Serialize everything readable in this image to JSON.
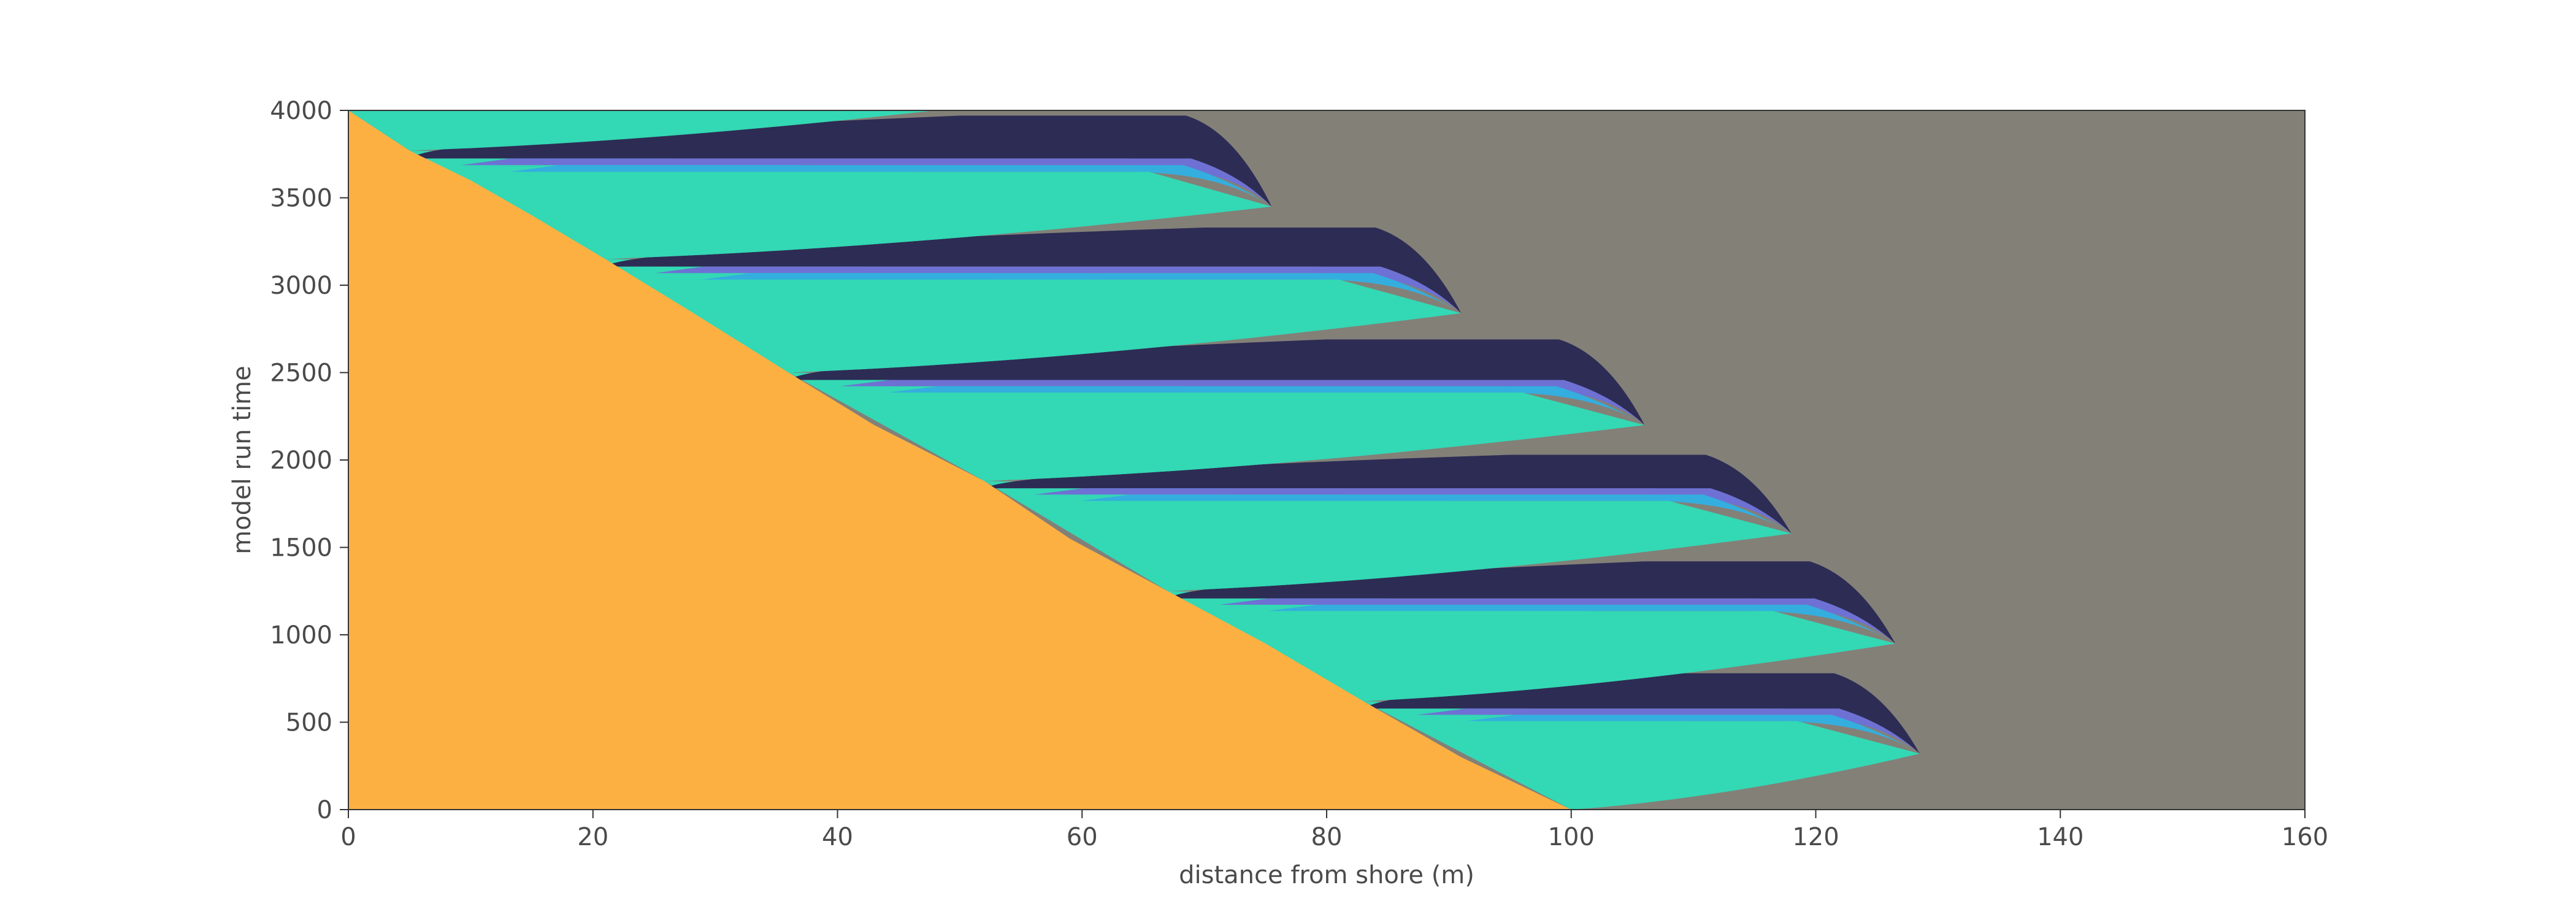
{
  "chart_data": {
    "type": "area",
    "title": "",
    "xlabel": "distance from shore (m)",
    "ylabel": "model run time",
    "xlim": [
      0,
      160
    ],
    "ylim": [
      0,
      4000
    ],
    "x_ticks": [
      0,
      20,
      40,
      60,
      80,
      100,
      120,
      140,
      160
    ],
    "y_ticks": [
      0,
      500,
      1000,
      1500,
      2000,
      2500,
      3000,
      3500,
      4000
    ],
    "grid": false,
    "legend": "none",
    "colors": {
      "background": "#838078",
      "shore": "#FDB042",
      "layer_teal": "#33D8B4",
      "layer_blue": "#34AEDE",
      "layer_purple": "#6E71D3",
      "layer_dark": "#2D2C54"
    },
    "shoreline": [
      {
        "t": 4000,
        "x": 0
      },
      {
        "t": 3770,
        "x": 5
      },
      {
        "t": 3600,
        "x": 10
      },
      {
        "t": 3400,
        "x": 15
      },
      {
        "t": 3150,
        "x": 21
      },
      {
        "t": 2850,
        "x": 28
      },
      {
        "t": 2500,
        "x": 36
      },
      {
        "t": 2200,
        "x": 43
      },
      {
        "t": 1880,
        "x": 52
      },
      {
        "t": 1550,
        "x": 59
      },
      {
        "t": 1250,
        "x": 67
      },
      {
        "t": 950,
        "x": 75
      },
      {
        "t": 620,
        "x": 83
      },
      {
        "t": 300,
        "x": 91
      },
      {
        "t": 0,
        "x": 100
      }
    ],
    "deposits": [
      {
        "start_t": 620,
        "end_t": 0,
        "start_x": 83,
        "end_x": 100,
        "tip_x": 128.5,
        "tip_t": 320,
        "dark_reach_x": 107,
        "top_t": 780
      },
      {
        "start_t": 1250,
        "end_t": 620,
        "start_x": 67,
        "end_x": 83,
        "tip_x": 126.5,
        "tip_t": 950,
        "dark_reach_x": 106,
        "top_t": 1420
      },
      {
        "start_t": 1880,
        "end_t": 1250,
        "start_x": 52,
        "end_x": 67,
        "tip_x": 118,
        "tip_t": 1580,
        "dark_reach_x": 95,
        "top_t": 2030
      },
      {
        "start_t": 2500,
        "end_t": 1880,
        "start_x": 36,
        "end_x": 52,
        "tip_x": 106,
        "tip_t": 2200,
        "dark_reach_x": 80,
        "top_t": 2690
      },
      {
        "start_t": 3150,
        "end_t": 2500,
        "start_x": 21,
        "end_x": 36,
        "tip_x": 91,
        "tip_t": 2840,
        "dark_reach_x": 70,
        "top_t": 3330
      },
      {
        "start_t": 3770,
        "end_t": 3150,
        "start_x": 5,
        "end_x": 21,
        "tip_x": 75.5,
        "tip_t": 3450,
        "dark_reach_x": 50,
        "top_t": 3970
      },
      {
        "start_t": 4000,
        "end_t": 3770,
        "start_x": 0,
        "end_x": 5,
        "tip_x": 48,
        "tip_t": 4000,
        "dark_reach_x": 0,
        "top_t": 4000
      }
    ]
  }
}
